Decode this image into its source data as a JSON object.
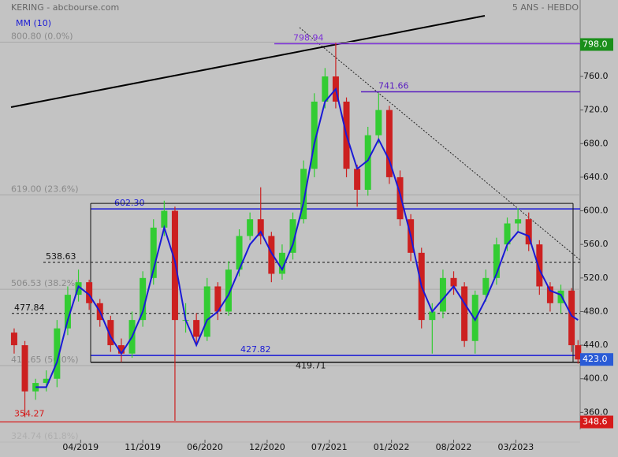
{
  "chart_data": {
    "type": "candlestick",
    "title": "KERING - abcbourse.com",
    "subtitle": "5 ANS - HEBDO",
    "x": [
      0,
      5,
      10,
      15,
      20,
      25,
      30,
      35,
      40,
      45,
      50,
      55,
      60,
      65,
      70,
      75,
      80,
      85,
      90,
      95,
      100,
      105,
      110,
      115,
      120,
      125,
      130,
      135,
      140,
      145,
      150,
      155,
      160,
      165,
      170,
      175,
      180,
      185,
      190,
      195,
      200,
      205,
      210,
      215,
      220,
      225,
      230,
      235,
      240,
      245,
      250,
      255,
      260,
      263
    ],
    "open": [
      455,
      440,
      385,
      395,
      400,
      460,
      500,
      515,
      490,
      470,
      440,
      430,
      470,
      520,
      580,
      600,
      470,
      470,
      450,
      510,
      480,
      530,
      570,
      590,
      570,
      525,
      550,
      590,
      650,
      730,
      760,
      730,
      650,
      625,
      690,
      720,
      640,
      590,
      550,
      470,
      480,
      520,
      510,
      445,
      500,
      520,
      560,
      585,
      590,
      560,
      510,
      490,
      505,
      440
    ],
    "high": [
      460,
      445,
      400,
      410,
      470,
      510,
      530,
      518,
      495,
      475,
      448,
      480,
      528,
      590,
      612,
      605,
      490,
      478,
      520,
      515,
      540,
      578,
      598,
      628,
      575,
      560,
      598,
      660,
      740,
      770,
      800,
      735,
      655,
      700,
      740,
      725,
      648,
      596,
      556,
      490,
      530,
      528,
      515,
      505,
      530,
      568,
      592,
      603,
      598,
      565,
      515,
      512,
      508,
      446
    ],
    "low": [
      430,
      354.27,
      375,
      385,
      390,
      452,
      492,
      482,
      462,
      432,
      420,
      425,
      462,
      512,
      570,
      350,
      455,
      440,
      445,
      470,
      475,
      522,
      565,
      560,
      515,
      518,
      542,
      585,
      640,
      722,
      722,
      640,
      605,
      618,
      680,
      632,
      582,
      540,
      460,
      430,
      472,
      500,
      438,
      430,
      492,
      512,
      552,
      575,
      552,
      500,
      480,
      478,
      432,
      418
    ],
    "close": [
      440,
      385,
      395,
      400,
      460,
      500,
      515,
      490,
      470,
      440,
      430,
      470,
      520,
      580,
      600,
      470,
      470,
      450,
      510,
      480,
      530,
      570,
      590,
      570,
      525,
      550,
      590,
      650,
      730,
      760,
      730,
      650,
      625,
      690,
      720,
      640,
      590,
      550,
      470,
      480,
      520,
      510,
      445,
      500,
      520,
      560,
      585,
      590,
      560,
      510,
      490,
      505,
      440,
      423
    ],
    "up_color": "#33cc33",
    "down_color": "#cc2020",
    "ma": {
      "name": "MM (10)",
      "color": "#1a1ad6",
      "values": [
        null,
        null,
        390,
        390,
        420,
        470,
        510,
        500,
        480,
        450,
        430,
        450,
        480,
        530,
        580,
        540,
        470,
        440,
        470,
        480,
        500,
        530,
        560,
        575,
        550,
        530,
        560,
        610,
        680,
        730,
        745,
        690,
        650,
        660,
        685,
        660,
        620,
        570,
        510,
        480,
        495,
        510,
        490,
        470,
        495,
        525,
        560,
        575,
        570,
        530,
        505,
        500,
        475,
        470
      ]
    },
    "xlim": [
      -6.6,
      264
    ],
    "xticks": [
      {
        "value": 31,
        "label": "04/2019"
      },
      {
        "value": 60,
        "label": "11/2019"
      },
      {
        "value": 89,
        "label": "06/2020"
      },
      {
        "value": 118,
        "label": "12/2020"
      },
      {
        "value": 147,
        "label": "07/2021"
      },
      {
        "value": 176,
        "label": "01/2022"
      },
      {
        "value": 205,
        "label": "08/2022"
      },
      {
        "value": 234,
        "label": "03/2023"
      }
    ],
    "ylim": [
      344.4,
      851
    ],
    "yticks": [
      {
        "value": 800,
        "label": "800.0"
      },
      {
        "value": 760,
        "label": "760.0"
      },
      {
        "value": 720,
        "label": "720.0"
      },
      {
        "value": 680,
        "label": "680.0"
      },
      {
        "value": 640,
        "label": "640.0"
      },
      {
        "value": 600,
        "label": "600.0"
      },
      {
        "value": 560,
        "label": "560.0"
      },
      {
        "value": 520,
        "label": "520.0"
      },
      {
        "value": 480,
        "label": "480.0"
      },
      {
        "value": 440,
        "label": "440.0"
      },
      {
        "value": 400,
        "label": "400.0"
      },
      {
        "value": 360,
        "label": "360.0"
      }
    ],
    "levels": [
      {
        "value": 798.94,
        "color": "#7b2fd6",
        "style": "solid"
      },
      {
        "value": 741.66,
        "color": "#5a1fc0",
        "style": "solid"
      },
      {
        "value": 602.3,
        "label": "602.30",
        "color": "#1a1ad6",
        "style": "solid"
      },
      {
        "value": 538.63,
        "color": "#111111",
        "style": "dotted"
      },
      {
        "value": 477.84,
        "color": "#111111",
        "style": "dotted"
      },
      {
        "value": 427.82,
        "color": "#1a1ad6",
        "style": "solid"
      },
      {
        "value": 419.71,
        "color": "#111111",
        "style": "solid"
      }
    ],
    "fibonacci": [
      {
        "value": 800.8,
        "label": "800.80  (0.0%)"
      },
      {
        "value": 619.0,
        "label": "619.00  (23.6%)"
      },
      {
        "value": 506.53,
        "label": "506.53  (38.2%)"
      },
      {
        "value": 415.65,
        "label": "415.65  (50.0%)"
      },
      {
        "value": 324.74,
        "label": "324.74  (61.8%)"
      }
    ],
    "price_badges": [
      {
        "value": 798.0,
        "label": "798.0",
        "color": "#1a8f1a"
      },
      {
        "value": 423.0,
        "label": "423.0",
        "color": "#2a5bd6"
      },
      {
        "value": 348.6,
        "label": "348.6",
        "color": "#d61a1a"
      }
    ]
  }
}
